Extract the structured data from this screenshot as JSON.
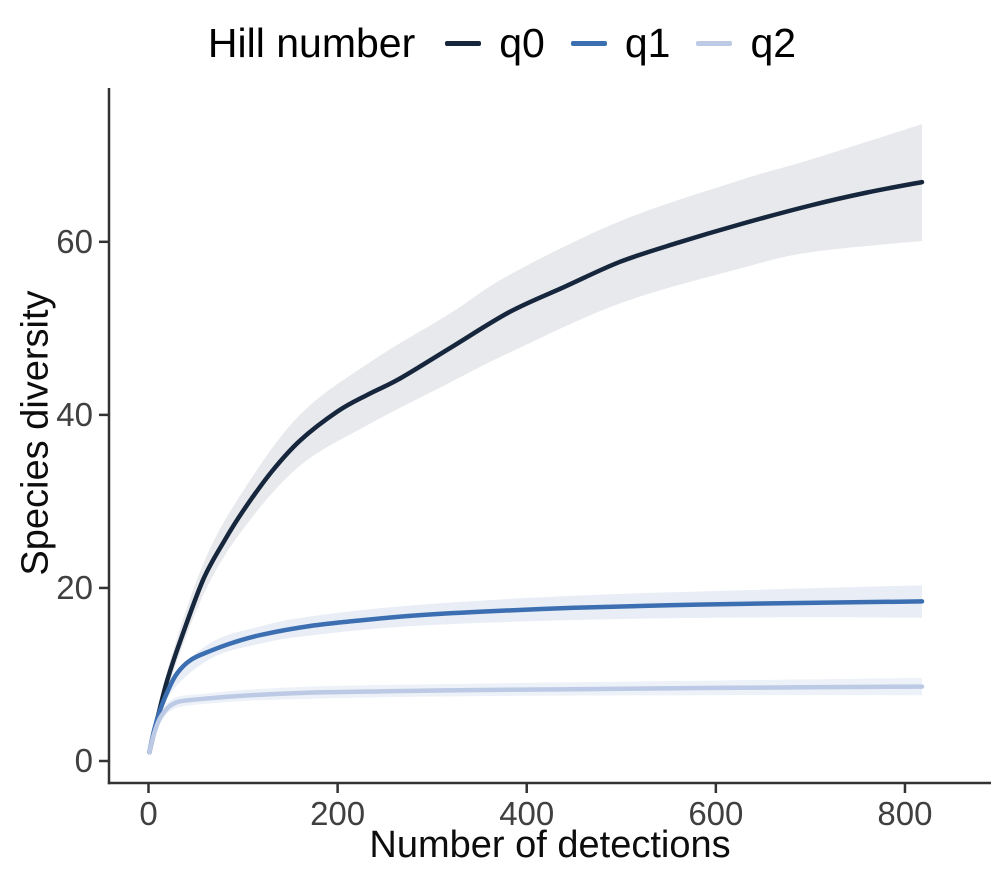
{
  "chart_data": {
    "type": "line",
    "title": "",
    "xlabel": "Number of detections",
    "ylabel": "Species diversity",
    "x_ticks": [
      0,
      200,
      400,
      600,
      800
    ],
    "y_ticks": [
      0,
      20,
      40,
      60
    ],
    "xlim": [
      -35,
      848
    ],
    "ylim": [
      -2.5,
      77
    ],
    "grid": false,
    "legend": {
      "title": "Hill number",
      "position": "top",
      "entries": [
        {
          "label": "q0",
          "color": "#16263c",
          "ribbon_color": "#e8e9ec"
        },
        {
          "label": "q1",
          "color": "#3c6fb1",
          "ribbon_color": "#e8edf6"
        },
        {
          "label": "q2",
          "color": "#bccae6",
          "ribbon_color": "#edf1f8"
        }
      ]
    },
    "axis_color": "#333333",
    "tick_label_color": "#404040",
    "series": [
      {
        "name": "q0",
        "color": "#16263c",
        "ribbon_color": "#e8e9ec",
        "points": [
          [
            1,
            1
          ],
          [
            10,
            5.2
          ],
          [
            20,
            9.4
          ],
          [
            35,
            14.3
          ],
          [
            58,
            21
          ],
          [
            80,
            25.4
          ],
          [
            100,
            28.9
          ],
          [
            130,
            33.4
          ],
          [
            160,
            37
          ],
          [
            200,
            40.4
          ],
          [
            233,
            42.4
          ],
          [
            266,
            44.2
          ],
          [
            320,
            47.8
          ],
          [
            382,
            51.9
          ],
          [
            440,
            54.8
          ],
          [
            499,
            57.7
          ],
          [
            560,
            59.9
          ],
          [
            625,
            62
          ],
          [
            700,
            64.2
          ],
          [
            760,
            65.7
          ],
          [
            818,
            66.9
          ]
        ],
        "ribbon": [
          [
            1,
            0.7,
            1.3
          ],
          [
            20,
            8.3,
            10.5
          ],
          [
            58,
            19.2,
            22.8
          ],
          [
            100,
            26.8,
            31.2
          ],
          [
            160,
            34.1,
            40.0
          ],
          [
            233,
            38.9,
            46.0
          ],
          [
            320,
            43.8,
            51.8
          ],
          [
            382,
            47.2,
            56.2
          ],
          [
            499,
            52.9,
            62.4
          ],
          [
            625,
            56.9,
            67.1
          ],
          [
            700,
            58.8,
            69.5
          ],
          [
            818,
            60.1,
            73.6
          ]
        ]
      },
      {
        "name": "q1",
        "color": "#3c6fb1",
        "ribbon_color": "#e8edf6",
        "points": [
          [
            1,
            1
          ],
          [
            6,
            3.6
          ],
          [
            12,
            5.8
          ],
          [
            20,
            8
          ],
          [
            30,
            10.1
          ],
          [
            45,
            11.7
          ],
          [
            65,
            12.7
          ],
          [
            90,
            13.7
          ],
          [
            120,
            14.6
          ],
          [
            171,
            15.6
          ],
          [
            220,
            16.2
          ],
          [
            280,
            16.8
          ],
          [
            350,
            17.25
          ],
          [
            450,
            17.7
          ],
          [
            550,
            18.0
          ],
          [
            650,
            18.2
          ],
          [
            818,
            18.45
          ]
        ],
        "ribbon": [
          [
            1,
            0.9,
            1.1
          ],
          [
            20,
            7.3,
            8.7
          ],
          [
            65,
            11.8,
            13.6
          ],
          [
            120,
            13.6,
            15.6
          ],
          [
            171,
            14.5,
            16.7
          ],
          [
            280,
            15.6,
            18.0
          ],
          [
            450,
            16.3,
            19.1
          ],
          [
            650,
            16.6,
            19.8
          ],
          [
            818,
            16.55,
            20.3
          ]
        ]
      },
      {
        "name": "q2",
        "color": "#bccae6",
        "ribbon_color": "#edf1f8",
        "points": [
          [
            1,
            1
          ],
          [
            6,
            3.2
          ],
          [
            12,
            4.9
          ],
          [
            20,
            6.1
          ],
          [
            30,
            6.8
          ],
          [
            45,
            7.05
          ],
          [
            65,
            7.25
          ],
          [
            100,
            7.55
          ],
          [
            171,
            7.9
          ],
          [
            250,
            8.05
          ],
          [
            350,
            8.2
          ],
          [
            450,
            8.3
          ],
          [
            600,
            8.45
          ],
          [
            818,
            8.6
          ]
        ],
        "ribbon": [
          [
            1,
            0.9,
            1.1
          ],
          [
            20,
            5.5,
            6.7
          ],
          [
            65,
            6.65,
            7.85
          ],
          [
            171,
            7.2,
            8.6
          ],
          [
            350,
            7.5,
            8.95
          ],
          [
            600,
            7.6,
            9.3
          ],
          [
            818,
            7.6,
            9.6
          ]
        ]
      }
    ]
  }
}
